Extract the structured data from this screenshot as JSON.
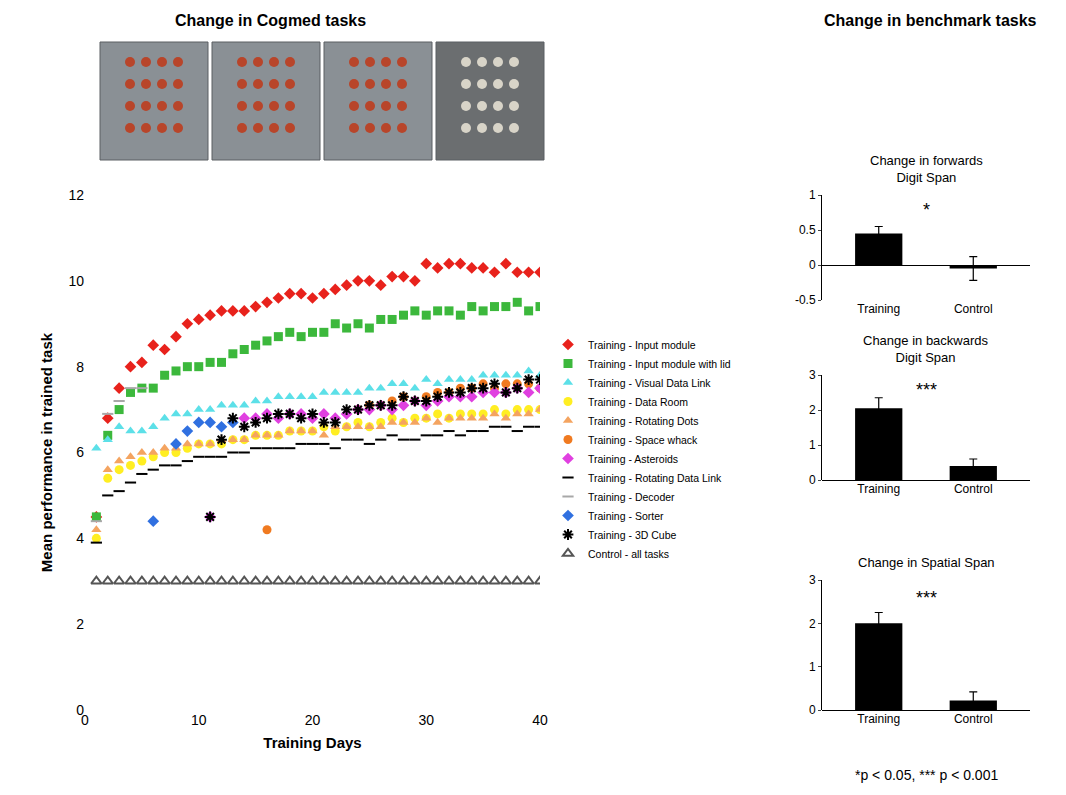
{
  "headings": {
    "left": "Change in Cogmed tasks",
    "right": "Change in benchmark tasks"
  },
  "footnote": "*p < 0.05, *** p < 0.001",
  "chart_data": [
    {
      "type": "scatter",
      "title": "Change in Cogmed tasks",
      "x_label": "Training Days",
      "y_label": "Mean performance in trained task",
      "xlim": [
        0,
        40
      ],
      "xticks": [
        0,
        10,
        20,
        30,
        40
      ],
      "ylim": [
        0,
        12
      ],
      "yticks": [
        0,
        2,
        4,
        6,
        8,
        10,
        12
      ],
      "grid": false,
      "legend": "right",
      "x": [
        1,
        2,
        3,
        4,
        5,
        6,
        7,
        8,
        9,
        10,
        11,
        12,
        13,
        14,
        15,
        16,
        17,
        18,
        19,
        20,
        21,
        22,
        23,
        24,
        25,
        26,
        27,
        28,
        29,
        30,
        31,
        32,
        33,
        34,
        35,
        36,
        37,
        38,
        39,
        40
      ],
      "series": [
        {
          "name": "Training - Input module",
          "color": "#e8221c",
          "marker": "diamond",
          "values": [
            4.5,
            6.8,
            7.5,
            8.0,
            8.1,
            8.5,
            8.4,
            8.7,
            9.0,
            9.1,
            9.2,
            9.3,
            9.3,
            9.3,
            9.4,
            9.5,
            9.6,
            9.7,
            9.7,
            9.6,
            9.7,
            9.8,
            9.9,
            10.0,
            10.0,
            9.9,
            10.1,
            10.1,
            10.0,
            10.4,
            10.3,
            10.4,
            10.4,
            10.3,
            10.3,
            10.2,
            10.4,
            10.2,
            10.2,
            10.2
          ]
        },
        {
          "name": "Training - Input module with lid",
          "color": "#3cb83c",
          "marker": "square",
          "values": [
            4.5,
            6.4,
            7.0,
            7.4,
            7.5,
            7.5,
            7.8,
            7.9,
            8.0,
            8.0,
            8.1,
            8.1,
            8.3,
            8.4,
            8.5,
            8.6,
            8.7,
            8.8,
            8.7,
            8.8,
            8.8,
            9.0,
            8.9,
            9.0,
            8.9,
            9.1,
            9.1,
            9.2,
            9.3,
            9.2,
            9.3,
            9.3,
            9.2,
            9.4,
            9.3,
            9.4,
            9.4,
            9.5,
            9.3,
            9.4
          ]
        },
        {
          "name": "Training - Visual Data Link",
          "color": "#5ce0e8",
          "marker": "triangle",
          "values": [
            6.1,
            6.3,
            6.6,
            6.5,
            6.5,
            6.6,
            6.8,
            6.9,
            6.9,
            7.0,
            7.0,
            7.1,
            7.1,
            7.1,
            7.2,
            7.2,
            7.3,
            7.3,
            7.3,
            7.3,
            7.4,
            7.4,
            7.4,
            7.4,
            7.5,
            7.5,
            7.6,
            7.6,
            7.5,
            7.7,
            7.6,
            7.7,
            7.7,
            7.7,
            7.8,
            7.8,
            7.8,
            7.8,
            7.9,
            7.8
          ]
        },
        {
          "name": "Training - Data Room",
          "color": "#ffee22",
          "marker": "circle",
          "values": [
            4.0,
            5.4,
            5.6,
            5.7,
            5.8,
            5.9,
            6.0,
            6.0,
            6.1,
            6.2,
            6.2,
            6.2,
            6.3,
            6.3,
            6.4,
            6.4,
            6.4,
            6.5,
            6.5,
            6.5,
            6.6,
            6.5,
            6.6,
            6.7,
            6.6,
            6.7,
            6.8,
            6.7,
            6.8,
            6.8,
            6.9,
            6.8,
            6.9,
            6.9,
            6.9,
            7.0,
            6.9,
            7.0,
            7.0,
            7.0
          ]
        },
        {
          "name": "Training - Rotating Dots",
          "color": "#f4a460",
          "marker": "triangle",
          "values": [
            4.2,
            5.6,
            5.8,
            5.9,
            6.0,
            6.0,
            6.1,
            6.1,
            6.2,
            6.2,
            6.2,
            6.3,
            6.3,
            6.3,
            6.4,
            6.4,
            6.4,
            6.5,
            6.5,
            6.5,
            6.4,
            6.6,
            6.6,
            6.6,
            6.6,
            6.6,
            6.7,
            6.7,
            6.7,
            6.8,
            6.7,
            6.8,
            6.8,
            6.8,
            6.8,
            6.9,
            6.8,
            6.9,
            6.9,
            7.0
          ]
        },
        {
          "name": "Training - Space whack",
          "color": "#f07a20",
          "marker": "circle",
          "values": [
            null,
            null,
            null,
            null,
            null,
            null,
            null,
            null,
            null,
            null,
            null,
            null,
            null,
            null,
            null,
            4.2,
            null,
            null,
            null,
            null,
            null,
            null,
            null,
            7.0,
            7.1,
            7.1,
            7.2,
            7.3,
            7.2,
            7.3,
            7.4,
            7.4,
            7.5,
            7.5,
            7.6,
            7.5,
            7.6,
            7.6,
            7.6,
            7.5
          ]
        },
        {
          "name": "Training - Asteroids",
          "color": "#e040e0",
          "marker": "diamond",
          "values": [
            null,
            null,
            null,
            null,
            null,
            null,
            null,
            null,
            null,
            null,
            4.5,
            null,
            null,
            6.8,
            6.8,
            6.9,
            6.8,
            6.9,
            6.9,
            6.8,
            6.9,
            6.8,
            6.9,
            7.0,
            7.0,
            7.1,
            7.0,
            7.1,
            7.2,
            7.1,
            7.2,
            7.3,
            7.3,
            7.3,
            7.4,
            7.4,
            7.4,
            7.5,
            7.4,
            7.5
          ]
        },
        {
          "name": "Training - Rotating Data Link",
          "color": "#000000",
          "marker": "dash",
          "values": [
            3.9,
            5.0,
            5.1,
            5.3,
            5.5,
            5.6,
            5.7,
            5.7,
            5.8,
            5.9,
            5.9,
            5.9,
            6.0,
            6.0,
            6.1,
            6.1,
            6.1,
            6.1,
            6.2,
            6.2,
            6.2,
            6.1,
            6.3,
            6.3,
            6.2,
            6.3,
            6.4,
            6.3,
            6.3,
            6.4,
            6.4,
            6.5,
            6.4,
            6.5,
            6.5,
            6.6,
            6.6,
            6.5,
            6.6,
            6.6
          ]
        },
        {
          "name": "Training - Decoder",
          "color": "#a8a8a8",
          "marker": "dash",
          "values": [
            4.4,
            6.9,
            7.2,
            7.5,
            7.5,
            null,
            null,
            null,
            null,
            null,
            null,
            null,
            null,
            null,
            null,
            null,
            null,
            null,
            null,
            null,
            null,
            null,
            null,
            null,
            null,
            null,
            null,
            null,
            null,
            null,
            null,
            null,
            null,
            null,
            null,
            null,
            null,
            null,
            null,
            null
          ]
        },
        {
          "name": "Training - Sorter",
          "color": "#3070e0",
          "marker": "diamond",
          "values": [
            null,
            null,
            null,
            null,
            null,
            4.4,
            null,
            6.2,
            6.5,
            6.7,
            6.7,
            6.6,
            6.7,
            null,
            null,
            null,
            null,
            null,
            null,
            null,
            null,
            null,
            null,
            null,
            null,
            null,
            null,
            null,
            null,
            null,
            null,
            null,
            null,
            null,
            null,
            null,
            null,
            null,
            null,
            null
          ]
        },
        {
          "name": "Training - 3D Cube",
          "color": "#000000",
          "marker": "star",
          "values": [
            null,
            null,
            null,
            null,
            null,
            null,
            null,
            null,
            null,
            null,
            4.5,
            6.3,
            6.8,
            6.6,
            6.7,
            6.8,
            6.9,
            6.9,
            6.8,
            6.9,
            6.7,
            6.7,
            7.0,
            7.0,
            7.1,
            7.1,
            7.1,
            7.3,
            7.2,
            7.2,
            7.3,
            7.4,
            7.4,
            7.5,
            7.5,
            7.6,
            7.4,
            7.5,
            7.7,
            7.7
          ]
        },
        {
          "name": "Control - all tasks",
          "color": "#555555",
          "marker": "triangle-open",
          "values": [
            3.0,
            3.0,
            3.0,
            3.0,
            3.0,
            3.0,
            3.0,
            3.0,
            3.0,
            3.0,
            3.0,
            3.0,
            3.0,
            3.0,
            3.0,
            3.0,
            3.0,
            3.0,
            3.0,
            3.0,
            3.0,
            3.0,
            3.0,
            3.0,
            3.0,
            3.0,
            3.0,
            3.0,
            3.0,
            3.0,
            3.0,
            3.0,
            3.0,
            3.0,
            3.0,
            3.0,
            3.0,
            3.0,
            3.0,
            3.0
          ]
        }
      ]
    },
    {
      "type": "bar",
      "title": "Change in forwards Digit Span",
      "categories": [
        "Training",
        "Control"
      ],
      "values": [
        0.45,
        -0.05
      ],
      "errors": [
        0.1,
        0.17
      ],
      "color": "#000000",
      "ylim": [
        -0.5,
        1
      ],
      "yticks": [
        -0.5,
        0,
        0.5,
        1
      ],
      "grid": false,
      "annotations": [
        "*"
      ]
    },
    {
      "type": "bar",
      "title": "Change in backwards Digit Span",
      "categories": [
        "Training",
        "Control"
      ],
      "values": [
        2.05,
        0.4
      ],
      "errors": [
        0.3,
        0.2
      ],
      "color": "#000000",
      "ylim": [
        0,
        3
      ],
      "yticks": [
        0,
        1,
        2,
        3
      ],
      "grid": false,
      "annotations": [
        "***"
      ]
    },
    {
      "type": "bar",
      "title": "Change in Spatial Span",
      "categories": [
        "Training",
        "Control"
      ],
      "values": [
        2.0,
        0.22
      ],
      "errors": [
        0.25,
        0.2
      ],
      "color": "#000000",
      "ylim": [
        0,
        3
      ],
      "yticks": [
        0,
        1,
        2,
        3
      ],
      "grid": false,
      "annotations": [
        "***"
      ]
    }
  ]
}
